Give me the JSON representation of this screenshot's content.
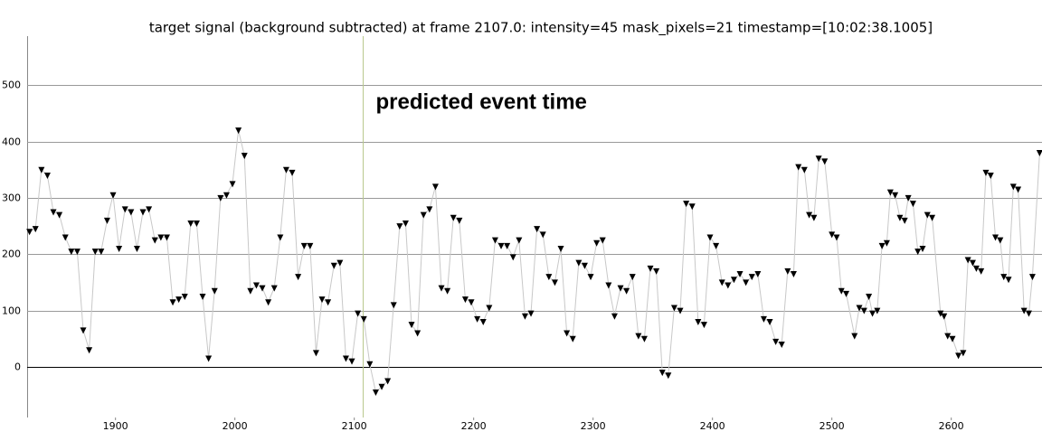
{
  "chart_data": {
    "type": "line",
    "title": "target signal (background subtracted) at frame 2107.0: intensity=45 mask_pixels=21 timestamp=[10:02:38.1005]",
    "x": [
      1828,
      1833,
      1838,
      1843,
      1848,
      1853,
      1858,
      1863,
      1868,
      1873,
      1878,
      1883,
      1888,
      1893,
      1898,
      1903,
      1908,
      1913,
      1918,
      1923,
      1928,
      1933,
      1938,
      1943,
      1948,
      1953,
      1958,
      1963,
      1968,
      1973,
      1978,
      1983,
      1988,
      1993,
      1998,
      2003,
      2008,
      2013,
      2018,
      2023,
      2028,
      2033,
      2038,
      2043,
      2048,
      2053,
      2058,
      2063,
      2068,
      2073,
      2078,
      2083,
      2088,
      2093,
      2098,
      2103,
      2108,
      2113,
      2118,
      2123,
      2128,
      2133,
      2138,
      2143,
      2148,
      2153,
      2158,
      2163,
      2168,
      2173,
      2178,
      2183,
      2188,
      2193,
      2198,
      2203,
      2208,
      2213,
      2218,
      2223,
      2228,
      2233,
      2238,
      2243,
      2248,
      2253,
      2258,
      2263,
      2268,
      2273,
      2278,
      2283,
      2288,
      2293,
      2298,
      2303,
      2308,
      2313,
      2318,
      2323,
      2328,
      2333,
      2338,
      2343,
      2348,
      2353,
      2358,
      2363,
      2368,
      2373,
      2378,
      2383,
      2388,
      2393,
      2398,
      2403,
      2408,
      2413,
      2418,
      2423,
      2428,
      2433,
      2438,
      2443,
      2448,
      2453,
      2458,
      2463,
      2468,
      2472,
      2477,
      2481,
      2485,
      2489,
      2494,
      2500,
      2504,
      2508,
      2512,
      2519,
      2523,
      2527,
      2531,
      2534,
      2538,
      2542,
      2546,
      2549,
      2553,
      2557,
      2561,
      2564,
      2568,
      2572,
      2576,
      2580,
      2584,
      2591,
      2594,
      2597,
      2601,
      2606,
      2610,
      2614,
      2618,
      2621,
      2625,
      2629,
      2633,
      2637,
      2641,
      2644,
      2648,
      2652,
      2656,
      2661,
      2665,
      2668,
      2674
    ],
    "values": [
      240,
      245,
      350,
      340,
      275,
      270,
      230,
      205,
      205,
      65,
      30,
      205,
      205,
      260,
      305,
      210,
      280,
      275,
      210,
      275,
      280,
      225,
      230,
      230,
      115,
      120,
      125,
      255,
      255,
      125,
      15,
      135,
      300,
      305,
      325,
      420,
      375,
      135,
      145,
      140,
      115,
      140,
      230,
      350,
      345,
      160,
      215,
      215,
      25,
      120,
      115,
      180,
      185,
      15,
      10,
      95,
      85,
      5,
      -45,
      -35,
      -25,
      110,
      250,
      255,
      75,
      60,
      270,
      280,
      320,
      140,
      135,
      265,
      260,
      120,
      115,
      85,
      80,
      105,
      225,
      215,
      215,
      195,
      225,
      90,
      95,
      245,
      235,
      160,
      150,
      210,
      60,
      50,
      185,
      180,
      160,
      220,
      225,
      145,
      90,
      140,
      135,
      160,
      55,
      50,
      175,
      170,
      -10,
      -15,
      105,
      100,
      290,
      285,
      80,
      75,
      230,
      215,
      150,
      145,
      155,
      165,
      150,
      160,
      165,
      85,
      80,
      45,
      40,
      170,
      165,
      355,
      350,
      270,
      265,
      370,
      365,
      235,
      230,
      135,
      130,
      55,
      105,
      100,
      125,
      95,
      100,
      215,
      220,
      310,
      305,
      265,
      260,
      300,
      290,
      205,
      210,
      270,
      265,
      95,
      90,
      55,
      50,
      20,
      25,
      190,
      185,
      175,
      170,
      345,
      340,
      230,
      225,
      160,
      155,
      320,
      315,
      100,
      95,
      160,
      380
    ],
    "color": "#000000",
    "line_color": "#c8c8c8",
    "xlim": [
      1826,
      2676
    ],
    "ylim": [
      -90,
      587
    ],
    "xticks": [
      1900,
      2000,
      2100,
      2200,
      2300,
      2400,
      2500,
      2600
    ],
    "yticks": [
      0,
      100,
      200,
      300,
      400,
      500
    ],
    "grid": true,
    "event_line": {
      "x": 2107,
      "label": "predicted event time",
      "color": "#b9c88e"
    }
  }
}
